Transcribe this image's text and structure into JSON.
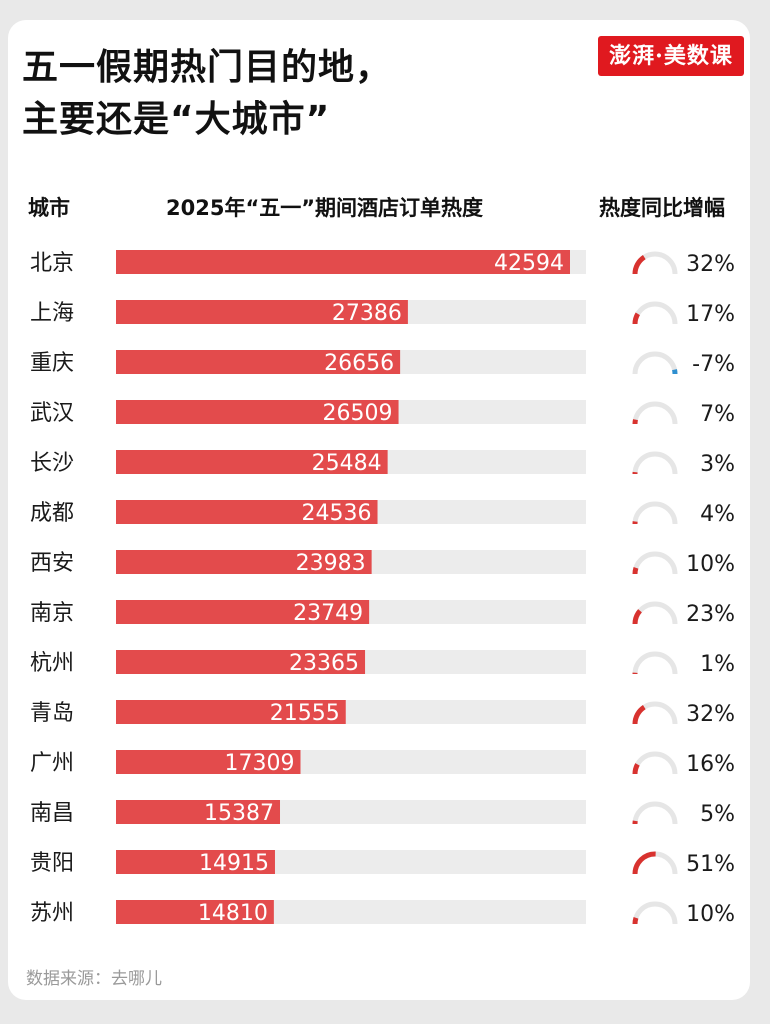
{
  "title": {
    "line1": "五一假期热门目的地，",
    "line2": "主要还是“大城市”"
  },
  "logo_text": "澎湃·美数课",
  "colors": {
    "bar": "#e34b4c",
    "track": "#ececec",
    "gauge_positive": "#d8322f",
    "gauge_negative": "#2f8fd0",
    "gauge_track": "#e6e6e6",
    "logo_bg": "#e0191f"
  },
  "headers": {
    "city": "城市",
    "chart": "2025年“五一”期间酒店订单热度",
    "growth": "热度同比增幅"
  },
  "chart_data": {
    "type": "bar",
    "orientation": "horizontal",
    "title": "2025年“五一”期间酒店订单热度",
    "categories": [
      "北京",
      "上海",
      "重庆",
      "武汉",
      "长沙",
      "成都",
      "西安",
      "南京",
      "杭州",
      "青岛",
      "广州",
      "南昌",
      "贵阳",
      "苏州"
    ],
    "series": [
      {
        "name": "2025年“五一”期间酒店订单热度",
        "values": [
          42594,
          27386,
          26656,
          26509,
          25484,
          24536,
          23983,
          23749,
          23365,
          21555,
          17309,
          15387,
          14915,
          14810
        ]
      },
      {
        "name": "热度同比增幅",
        "values": [
          32,
          17,
          -7,
          7,
          3,
          4,
          10,
          23,
          1,
          32,
          16,
          5,
          51,
          10
        ]
      }
    ],
    "growth_labels": [
      "32%",
      "17%",
      "-7%",
      "7%",
      "3%",
      "4%",
      "10%",
      "23%",
      "1%",
      "32%",
      "16%",
      "5%",
      "51%",
      "10%"
    ],
    "xlim": [
      0,
      44000
    ],
    "gauge_range": [
      0,
      100
    ]
  },
  "source": "数据来源：去哪儿"
}
